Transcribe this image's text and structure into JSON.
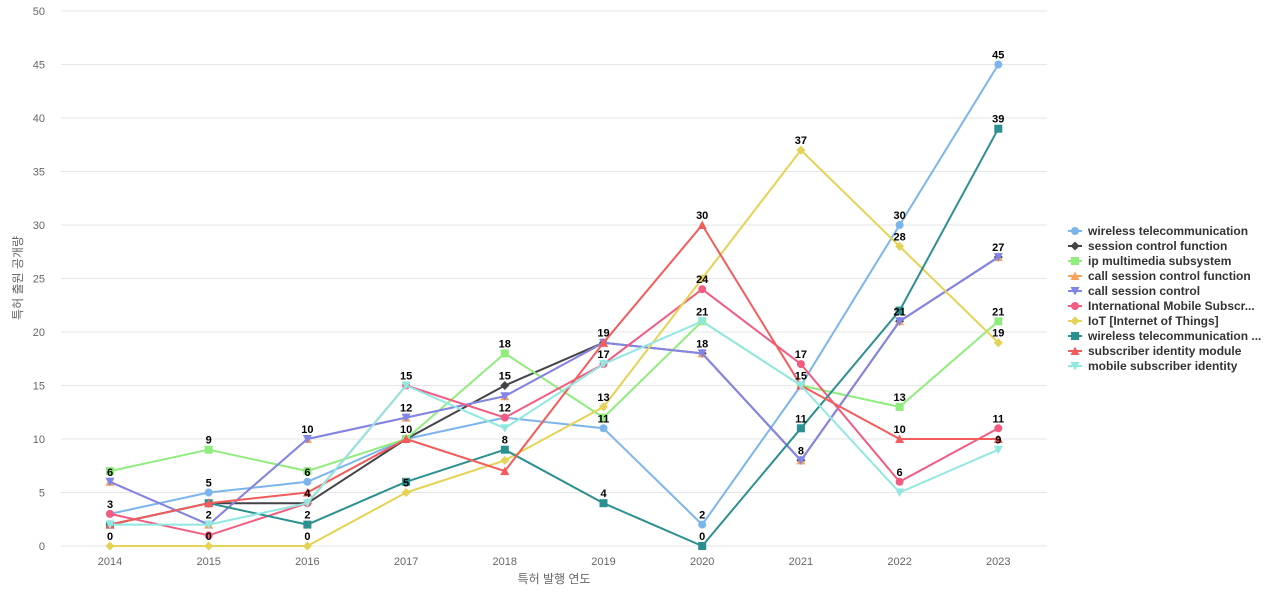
{
  "chart_data": {
    "type": "line",
    "title": "",
    "xlabel": "특허 발행 연도",
    "ylabel": "특허 출원 공개량",
    "ylim": [
      0,
      50
    ],
    "yticks": [
      0,
      5,
      10,
      15,
      20,
      25,
      30,
      35,
      40,
      45,
      50
    ],
    "grid": true,
    "legend_position": "right",
    "x": [
      "2014",
      "2015",
      "2016",
      "2017",
      "2018",
      "2019",
      "2020",
      "2021",
      "2022",
      "2023"
    ],
    "series": [
      {
        "name": "wireless telecommunication",
        "color": "#7cb5ec",
        "marker": "circle",
        "values": [
          3,
          5,
          6,
          10,
          12,
          11,
          2,
          15,
          30,
          45
        ]
      },
      {
        "name": "session control function",
        "color": "#434348",
        "marker": "diamond",
        "values": [
          2,
          4,
          4,
          10,
          15,
          19,
          18,
          8,
          21,
          27
        ]
      },
      {
        "name": "ip multimedia subsystem",
        "color": "#90ed7d",
        "marker": "square",
        "values": [
          7,
          9,
          7,
          10,
          18,
          12,
          21,
          15,
          13,
          21
        ]
      },
      {
        "name": "call session control function",
        "color": "#f7a35c",
        "marker": "triangle",
        "values": [
          6,
          2,
          10,
          12,
          14,
          19,
          18,
          8,
          21,
          27
        ]
      },
      {
        "name": "call session control",
        "color": "#8085e9",
        "marker": "triangle-down",
        "values": [
          6,
          2,
          10,
          12,
          14,
          19,
          18,
          8,
          21,
          27
        ]
      },
      {
        "name": "International Mobile Subscr...",
        "color": "#f15c80",
        "marker": "circle",
        "values": [
          3,
          1,
          4,
          15,
          12,
          17,
          24,
          17,
          6,
          11
        ]
      },
      {
        "name": "IoT [Internet of Things]",
        "color": "#e4d354",
        "marker": "diamond",
        "values": [
          0,
          0,
          0,
          5,
          8,
          13,
          25,
          37,
          28,
          19
        ]
      },
      {
        "name": "wireless telecommunication ...",
        "color": "#2b908f",
        "marker": "square",
        "values": [
          2,
          4,
          2,
          6,
          9,
          4,
          0,
          11,
          22,
          39
        ]
      },
      {
        "name": "subscriber identity module",
        "color": "#f45b5b",
        "marker": "triangle",
        "values": [
          2,
          4,
          5,
          10,
          7,
          19,
          30,
          15,
          10,
          10
        ]
      },
      {
        "name": "mobile subscriber identity",
        "color": "#91e8e1",
        "marker": "triangle-down",
        "values": [
          2,
          2,
          4,
          15,
          11,
          17,
          21,
          15,
          5,
          9
        ]
      }
    ],
    "data_labels": [
      {
        "x": "2014",
        "text": "6",
        "y": 6
      },
      {
        "x": "2014",
        "text": "3",
        "y": 3
      },
      {
        "x": "2014",
        "text": "0",
        "y": 0
      },
      {
        "x": "2015",
        "text": "9",
        "y": 9
      },
      {
        "x": "2015",
        "text": "5",
        "y": 5
      },
      {
        "x": "2015",
        "text": "2",
        "y": 2
      },
      {
        "x": "2015",
        "text": "0",
        "y": 0
      },
      {
        "x": "2016",
        "text": "10",
        "y": 10
      },
      {
        "x": "2016",
        "text": "6",
        "y": 6
      },
      {
        "x": "2016",
        "text": "4",
        "y": 4
      },
      {
        "x": "2016",
        "text": "2",
        "y": 2
      },
      {
        "x": "2016",
        "text": "0",
        "y": 0
      },
      {
        "x": "2017",
        "text": "15",
        "y": 15
      },
      {
        "x": "2017",
        "text": "12",
        "y": 12
      },
      {
        "x": "2017",
        "text": "10",
        "y": 10
      },
      {
        "x": "2017",
        "text": "5",
        "y": 5
      },
      {
        "x": "2018",
        "text": "18",
        "y": 18
      },
      {
        "x": "2018",
        "text": "15",
        "y": 15
      },
      {
        "x": "2018",
        "text": "12",
        "y": 12
      },
      {
        "x": "2018",
        "text": "8",
        "y": 9
      },
      {
        "x": "2019",
        "text": "19",
        "y": 19
      },
      {
        "x": "2019",
        "text": "17",
        "y": 17
      },
      {
        "x": "2019",
        "text": "13",
        "y": 13
      },
      {
        "x": "2019",
        "text": "11",
        "y": 11
      },
      {
        "x": "2019",
        "text": "4",
        "y": 4
      },
      {
        "x": "2020",
        "text": "30",
        "y": 30
      },
      {
        "x": "2020",
        "text": "24",
        "y": 24
      },
      {
        "x": "2020",
        "text": "21",
        "y": 21
      },
      {
        "x": "2020",
        "text": "18",
        "y": 18
      },
      {
        "x": "2020",
        "text": "2",
        "y": 2
      },
      {
        "x": "2020",
        "text": "0",
        "y": 0
      },
      {
        "x": "2021",
        "text": "37",
        "y": 37
      },
      {
        "x": "2021",
        "text": "17",
        "y": 17
      },
      {
        "x": "2021",
        "text": "15",
        "y": 15
      },
      {
        "x": "2021",
        "text": "11",
        "y": 11
      },
      {
        "x": "2021",
        "text": "8",
        "y": 8
      },
      {
        "x": "2022",
        "text": "30",
        "y": 30
      },
      {
        "x": "2022",
        "text": "28",
        "y": 28
      },
      {
        "x": "2022",
        "text": "21",
        "y": 21
      },
      {
        "x": "2022",
        "text": "13",
        "y": 13
      },
      {
        "x": "2022",
        "text": "10",
        "y": 10
      },
      {
        "x": "2022",
        "text": "6",
        "y": 6
      },
      {
        "x": "2023",
        "text": "45",
        "y": 45
      },
      {
        "x": "2023",
        "text": "39",
        "y": 39
      },
      {
        "x": "2023",
        "text": "27",
        "y": 27
      },
      {
        "x": "2023",
        "text": "21",
        "y": 21
      },
      {
        "x": "2023",
        "text": "19",
        "y": 19
      },
      {
        "x": "2023",
        "text": "11",
        "y": 11
      },
      {
        "x": "2023",
        "text": "9",
        "y": 9
      }
    ]
  }
}
